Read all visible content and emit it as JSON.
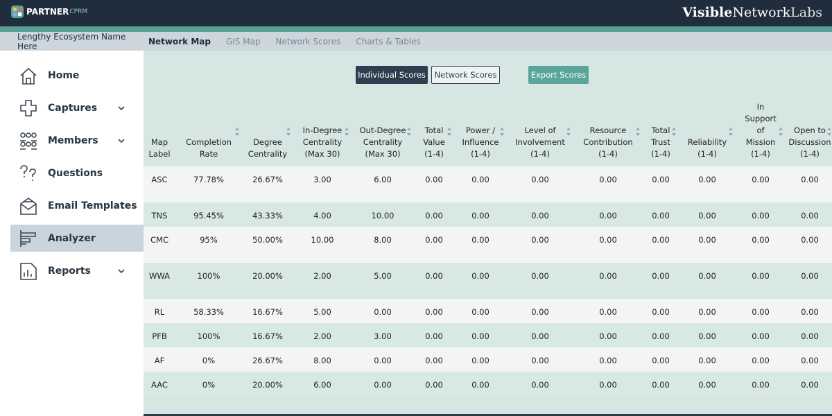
{
  "header": {
    "logo": "PARTNER",
    "logo_suffix": "CPRM",
    "brand": [
      "Visible",
      "Network",
      "Labs"
    ]
  },
  "tabs": {
    "ecosystem": "Lengthy Ecosystem Name Here",
    "items": [
      "Network Map",
      "GIS Map",
      "Network Scores",
      "Charts & Tables"
    ]
  },
  "sidebar": {
    "items": [
      "Home",
      "Captures",
      "Members",
      "Questions",
      "Email Templates",
      "Analyzer",
      "Reports"
    ]
  },
  "buttons": [
    "Individual Scores",
    "Network Scores",
    "Export Scores"
  ],
  "table": {
    "columns": [
      [
        "Map",
        "Label"
      ],
      [
        "Completion",
        "Rate"
      ],
      [
        "Degree",
        "Centrality"
      ],
      [
        "In-Degree",
        "Centrality",
        "(Max 30)"
      ],
      [
        "Out-Degree",
        "Centrality",
        "(Max 30)"
      ],
      [
        "Total",
        "Value",
        "(1-4)"
      ],
      [
        "Power /",
        "Influence",
        "(1-4)"
      ],
      [
        "Level of",
        "Involvement",
        "(1-4)"
      ],
      [
        "Resource",
        "Contribution",
        "(1-4)"
      ],
      [
        "Total",
        "Trust",
        "(1-4)"
      ],
      [
        "Reliability",
        "(1-4)"
      ],
      [
        "In",
        "Support",
        "of",
        "Mission",
        "(1-4)"
      ],
      [
        "Open to",
        "Discussion",
        "(1-4)"
      ]
    ],
    "rows": [
      [
        "ASC",
        "77.78%",
        "26.67%",
        "3.00",
        "6.00",
        "0.00",
        "0.00",
        "0.00",
        "0.00",
        "0.00",
        "0.00",
        "0.00",
        "0.00"
      ],
      [
        "TNS",
        "95.45%",
        "43.33%",
        "4.00",
        "10.00",
        "0.00",
        "0.00",
        "0.00",
        "0.00",
        "0.00",
        "0.00",
        "0.00",
        "0.00"
      ],
      [
        "CMC",
        "95%",
        "50.00%",
        "10.00",
        "8.00",
        "0.00",
        "0.00",
        "0.00",
        "0.00",
        "0.00",
        "0.00",
        "0.00",
        "0.00"
      ],
      [
        "WWA",
        "100%",
        "20.00%",
        "2.00",
        "5.00",
        "0.00",
        "0.00",
        "0.00",
        "0.00",
        "0.00",
        "0.00",
        "0.00",
        "0.00"
      ],
      [
        "RL",
        "58.33%",
        "16.67%",
        "5.00",
        "0.00",
        "0.00",
        "0.00",
        "0.00",
        "0.00",
        "0.00",
        "0.00",
        "0.00",
        "0.00"
      ],
      [
        "PFB",
        "100%",
        "16.67%",
        "2.00",
        "3.00",
        "0.00",
        "0.00",
        "0.00",
        "0.00",
        "0.00",
        "0.00",
        "0.00",
        "0.00"
      ],
      [
        "AF",
        "0%",
        "26.67%",
        "8.00",
        "0.00",
        "0.00",
        "0.00",
        "0.00",
        "0.00",
        "0.00",
        "0.00",
        "0.00",
        "0.00"
      ],
      [
        "AAC",
        "0%",
        "20.00%",
        "6.00",
        "0.00",
        "0.00",
        "0.00",
        "0.00",
        "0.00",
        "0.00",
        "0.00",
        "0.00",
        "0.00"
      ]
    ]
  }
}
